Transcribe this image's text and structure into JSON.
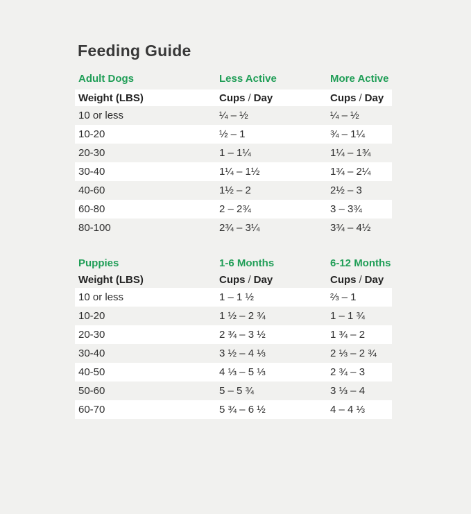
{
  "page": {
    "title": "Feeding Guide",
    "background_color": "#f1f1ef",
    "row_highlight_color": "#ffffff",
    "accent_green": "#209e57",
    "text_color": "#2e2e2e"
  },
  "labels": {
    "weight_header": "Weight (LBS)",
    "cups": "Cups",
    "slash": "/",
    "day": "Day"
  },
  "tables": [
    {
      "id": "adult-dogs",
      "col_headers": [
        "Adult Dogs",
        "Less Active",
        "More Active"
      ],
      "rows": [
        {
          "weight": "10 or less",
          "col2": "¼ – ½",
          "col3": "¼ – ½"
        },
        {
          "weight": "10-20",
          "col2": "½ – 1",
          "col3": "¾ – 1¼"
        },
        {
          "weight": "20-30",
          "col2": "1 – 1¼",
          "col3": "1¼ – 1¾"
        },
        {
          "weight": "30-40",
          "col2": "1¼ – 1½",
          "col3": "1¾ – 2¼"
        },
        {
          "weight": "40-60",
          "col2": "1½ – 2",
          "col3": "2½ – 3"
        },
        {
          "weight": "60-80",
          "col2": "2 – 2¾",
          "col3": "3 – 3¾"
        },
        {
          "weight": "80-100",
          "col2": "2¾ – 3¼",
          "col3": "3¾ – 4½"
        }
      ]
    },
    {
      "id": "puppies",
      "col_headers": [
        "Puppies",
        "1-6 Months",
        "6-12 Months"
      ],
      "rows": [
        {
          "weight": "10 or less",
          "col2": "1 – 1 ½",
          "col3": "⅔ – 1"
        },
        {
          "weight": "10-20",
          "col2": "1 ½ – 2 ¾",
          "col3": "1 – 1 ¾"
        },
        {
          "weight": "20-30",
          "col2": "2 ¾ – 3 ½",
          "col3": "1 ¾ – 2"
        },
        {
          "weight": "30-40",
          "col2": "3 ½ – 4 ⅓",
          "col3": "2 ⅓ – 2 ¾"
        },
        {
          "weight": "40-50",
          "col2": "4 ⅓ – 5 ⅓",
          "col3": "2 ¾ – 3"
        },
        {
          "weight": "50-60",
          "col2": "5 – 5 ¾",
          "col3": "3 ⅓ – 4"
        },
        {
          "weight": "60-70",
          "col2": "5 ¾ – 6 ½",
          "col3": "4 – 4 ⅓"
        }
      ]
    }
  ]
}
